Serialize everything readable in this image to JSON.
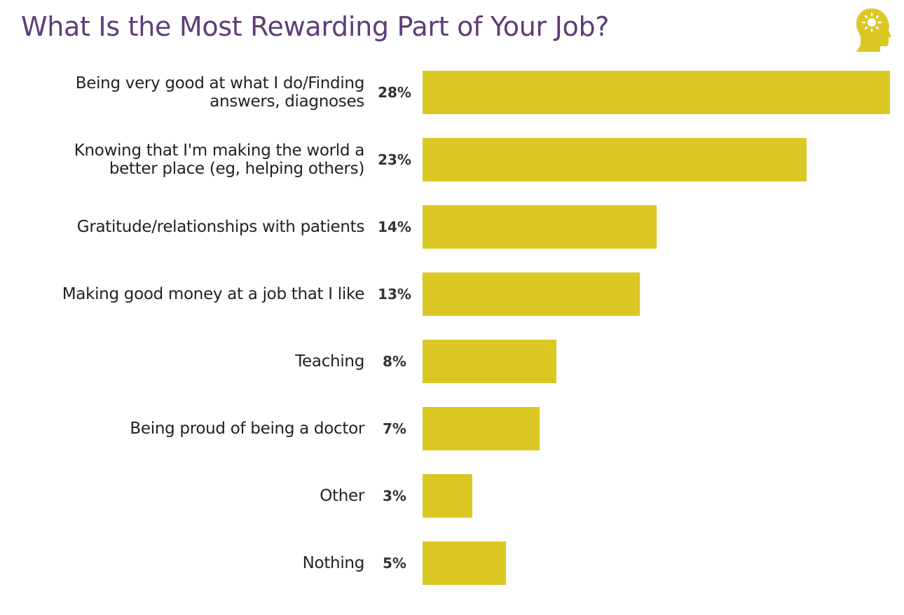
{
  "chart_data": {
    "type": "bar",
    "orientation": "horizontal",
    "title": "What Is the Most Rewarding Part of Your Job?",
    "categories": [
      "Being very good at what I do/Finding answers, diagnoses",
      "Knowing that I'm making the world a better place (eg, helping others)",
      "Gratitude/relationships with patients",
      "Making good money at a job that I like",
      "Teaching",
      "Being proud of being a doctor",
      "Other",
      "Nothing"
    ],
    "values": [
      28,
      23,
      14,
      13,
      8,
      7,
      3,
      5
    ],
    "value_labels": [
      "28%",
      "23%",
      "14%",
      "13%",
      "8%",
      "7%",
      "3%",
      "5%"
    ],
    "color": "#dbc822"
  }
}
